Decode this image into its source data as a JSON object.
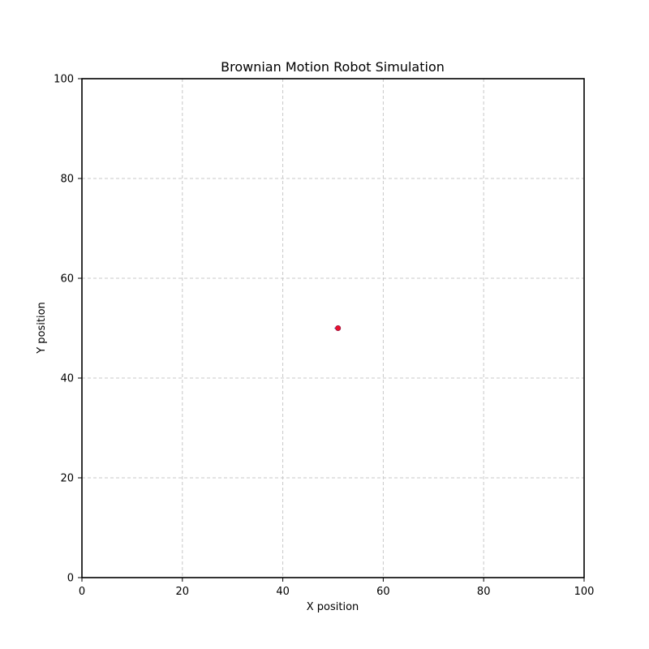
{
  "chart_data": {
    "type": "scatter",
    "title": "Brownian Motion Robot Simulation",
    "xlabel": "X position",
    "ylabel": "Y position",
    "xlim": [
      0,
      100
    ],
    "ylim": [
      0,
      100
    ],
    "xticks": [
      0,
      20,
      40,
      60,
      80,
      100
    ],
    "yticks": [
      0,
      20,
      40,
      60,
      80,
      100
    ],
    "grid": true,
    "grid_style": "dashed",
    "path": {
      "color": "#1f3fbf",
      "points": [
        {
          "x": 50.3,
          "y": 50.0
        },
        {
          "x": 51.0,
          "y": 50.0
        }
      ]
    },
    "robot": {
      "x": 51.0,
      "y": 50.0,
      "color": "#e8112d"
    }
  }
}
